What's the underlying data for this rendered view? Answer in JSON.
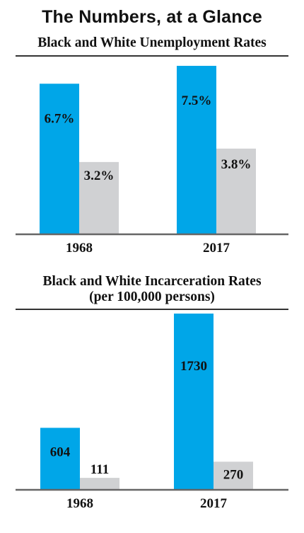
{
  "header": {
    "title": "The Numbers, at a Glance"
  },
  "colors": {
    "black_series": "#00a6e8",
    "white_series": "#d0d1d3",
    "axis": "#666666",
    "text": "#111111"
  },
  "chart_data": [
    {
      "type": "bar",
      "title": "Black and White Unemployment Rates",
      "categories": [
        "1968",
        "2017"
      ],
      "series": [
        {
          "values": [
            6.7,
            7.5
          ],
          "labels": [
            "6.7%",
            "7.5%"
          ]
        },
        {
          "values": [
            3.2,
            3.8
          ],
          "labels": [
            "3.2%",
            "3.8%"
          ]
        }
      ],
      "ylim": [
        0,
        7.5
      ],
      "xlabel": "",
      "ylabel": "",
      "grid": false
    },
    {
      "type": "bar",
      "title": "Black and White Incarceration Rates\n(per 100,000 persons)",
      "title_lines": [
        "Black and White Incarceration Rates",
        "(per 100,000 persons)"
      ],
      "categories": [
        "1968",
        "2017"
      ],
      "series": [
        {
          "values": [
            604,
            1730
          ],
          "labels": [
            "604",
            "1730"
          ]
        },
        {
          "values": [
            111,
            270
          ],
          "labels": [
            "111",
            "270"
          ]
        }
      ],
      "ylim": [
        0,
        1730
      ],
      "xlabel": "",
      "ylabel": "",
      "grid": false
    }
  ]
}
